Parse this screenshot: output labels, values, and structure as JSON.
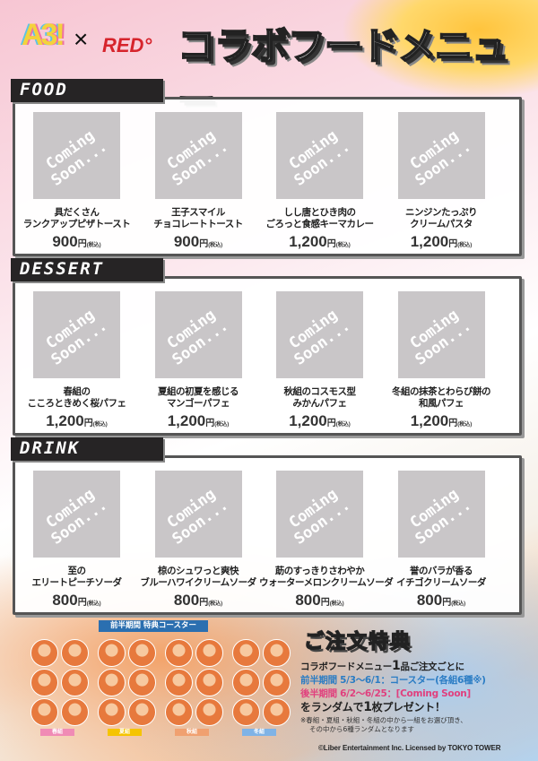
{
  "header": {
    "logo_left": "A3!",
    "logo_x": "×",
    "logo_right": "RED°",
    "title": "コラボフードメニュー"
  },
  "placeholder": {
    "line1": "Coming",
    "line2": "Soon..."
  },
  "tax_label": "(税込)",
  "yen": "円",
  "sections": [
    {
      "label": "FOOD",
      "items": [
        {
          "line1": "具だくさん",
          "line2": "ランクアップピザトースト",
          "price": "900"
        },
        {
          "line1": "王子スマイル",
          "line2": "チョコレートトースト",
          "price": "900"
        },
        {
          "line1": "しし唐とひき肉の",
          "line2": "ごろっと食感キーマカレー",
          "price": "1,200"
        },
        {
          "line1": "ニンジンたっぷり",
          "line2": "クリームパスタ",
          "price": "1,200"
        }
      ]
    },
    {
      "label": "DESSERT",
      "items": [
        {
          "line1": "春組の",
          "line2": "こころときめく桜パフェ",
          "price": "1,200"
        },
        {
          "line1": "夏組の初夏を感じる",
          "line2": "マンゴーパフェ",
          "price": "1,200"
        },
        {
          "line1": "秋組のコスモス型",
          "line2": "みかんパフェ",
          "price": "1,200"
        },
        {
          "line1": "冬組の抹茶とわらび餅の",
          "line2": "和風パフェ",
          "price": "1,200"
        }
      ]
    },
    {
      "label": "DRINK",
      "items": [
        {
          "line1": "至の",
          "line2": "エリートピーチソーダ",
          "price": "800"
        },
        {
          "line1": "椋のシュワっと爽快",
          "line2": "ブルーハワイクリームソーダ",
          "price": "800"
        },
        {
          "line1": "莇のすっきりさわやか",
          "line2": "ウォーターメロンクリームソーダ",
          "price": "800"
        },
        {
          "line1": "誉のバラが香る",
          "line2": "イチゴクリームソーダ",
          "price": "800"
        }
      ]
    }
  ],
  "coasters": {
    "banner": "前半期間 特典コースター",
    "groups": [
      {
        "label": "春組",
        "color": "#f08bb5"
      },
      {
        "label": "夏組",
        "color": "#f5c400"
      },
      {
        "label": "秋組",
        "color": "#f0a070"
      },
      {
        "label": "冬組",
        "color": "#7fb3e6"
      }
    ]
  },
  "bonus": {
    "title": "ご注文特典",
    "line1_a": "コラボフードメニュー",
    "line1_num": "1",
    "line1_b": "品ご注文ごとに",
    "line2": "前半期間 5/3～6/1：コースター(各組6種※)",
    "line3": "後半期間 6/2～6/25：[Coming Soon]",
    "line4_a": "をランダムで",
    "line4_num": "1",
    "line4_b": "枚プレゼント！",
    "note1": "※春組・夏組・秋組・冬組の中から一組をお選び頂き、",
    "note2": "その中から6種ランダムとなります"
  },
  "copyright": "©Liber Entertainment Inc.   Licensed by TOKYO TOWER"
}
